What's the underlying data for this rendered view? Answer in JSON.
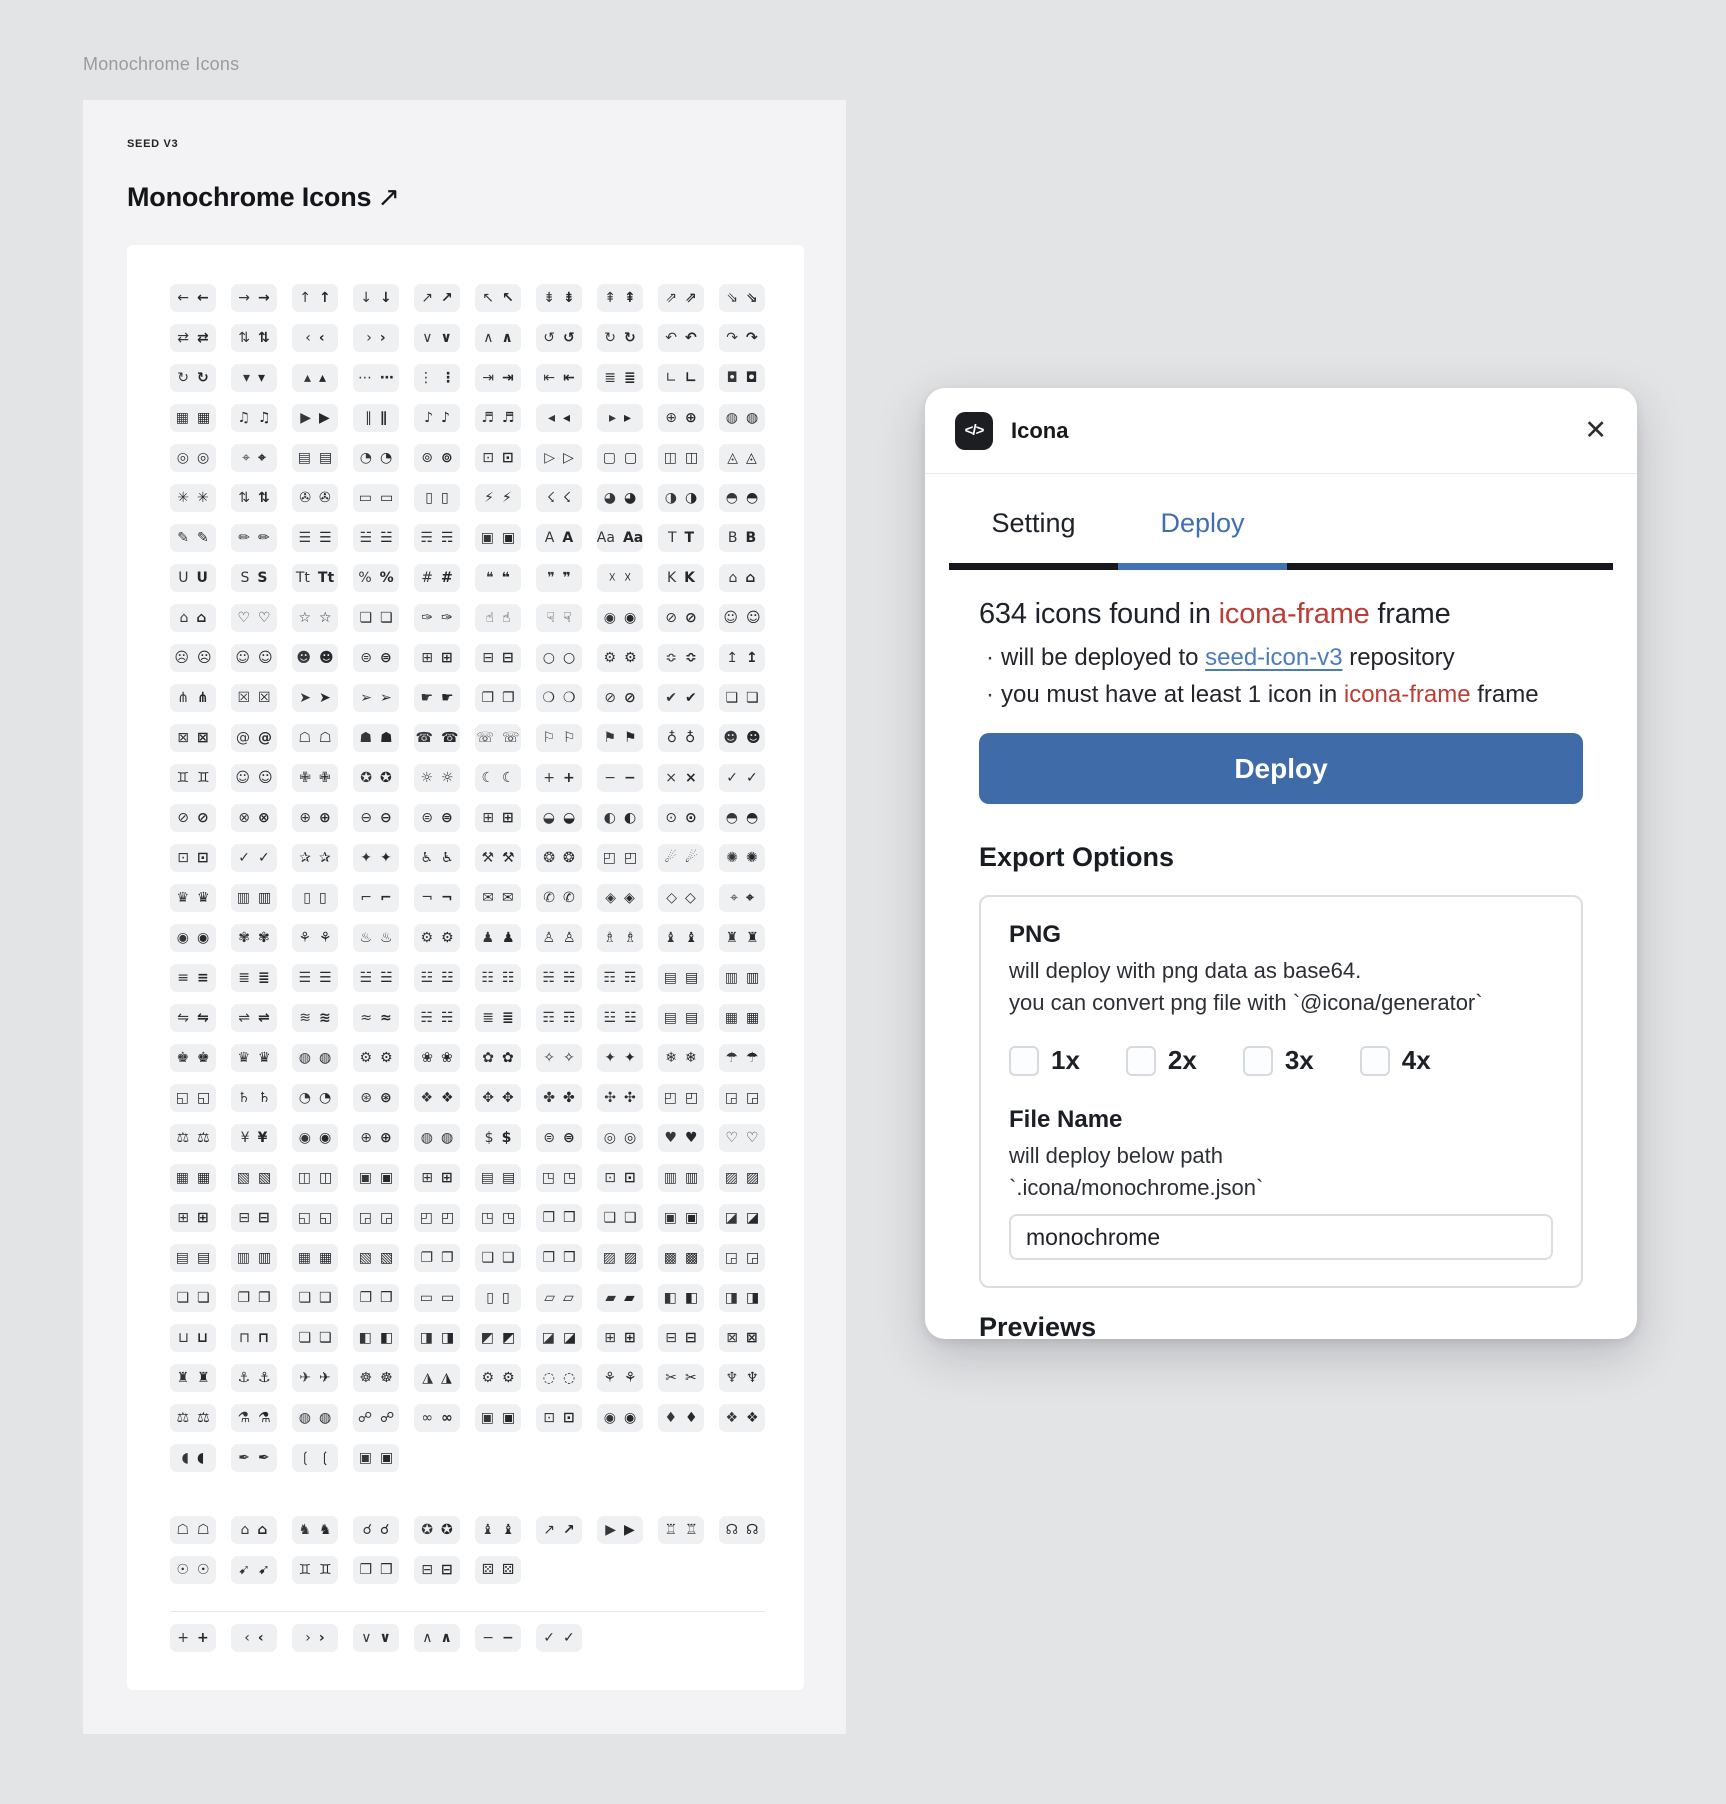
{
  "canvas": {
    "artboard_label": "Monochrome Icons",
    "frame": {
      "eyebrow": "SEED V3",
      "title": "Monochrome Icons",
      "title_arrow": "↗"
    },
    "icon_groups": [
      {
        "name": "main-grid",
        "divider_after": false,
        "rows": [
          [
            "←",
            "→",
            "↑",
            "↓",
            "↗",
            "↖",
            "⇟",
            "⇞",
            "⇗",
            "⇘"
          ],
          [
            "⇄",
            "⇅",
            "‹",
            "›",
            "∨",
            "∧",
            "↺",
            "↻",
            "↶",
            "↷"
          ],
          [
            "↻",
            "▾",
            "▴",
            "⋯",
            "⋮",
            "⇥",
            "⇤",
            "≣",
            "∟",
            "◘"
          ],
          [
            "▦",
            "♫",
            "▶",
            "∥",
            "♪",
            "♬",
            "◂",
            "▸",
            "⊕",
            "◍"
          ],
          [
            "◎",
            "⌖",
            "▤",
            "◔",
            "⊚",
            "⊡",
            "▷",
            "▢",
            "◫",
            "◬"
          ],
          [
            "✳",
            "⇅",
            "✇",
            "▭",
            "▯",
            "⚡",
            "☇",
            "◕",
            "◑",
            "◓"
          ],
          [
            "✎",
            "✏",
            "☰",
            "☱",
            "☴",
            "▣",
            "A",
            "Aa",
            "T",
            "B"
          ],
          [
            "U",
            "S",
            "Tt",
            "%",
            "#",
            "❝",
            "❞",
            "☓",
            "K",
            "⌂"
          ],
          [
            "⌂",
            "♡",
            "☆",
            "❏",
            "✑",
            "☝",
            "☟",
            "◉",
            "⊘",
            "☺"
          ],
          [
            "☹",
            "☺",
            "☻",
            "⊜",
            "⊞",
            "⊟",
            "○",
            "⚙",
            "≎",
            "↥"
          ],
          [
            "⋔",
            "☒",
            "➤",
            "➢",
            "☛",
            "❐",
            "❍",
            "⊘",
            "✔",
            "❏"
          ],
          [
            "⊠",
            "@",
            "☖",
            "☗",
            "☎",
            "☏",
            "⚐",
            "⚑",
            "♁",
            "☻"
          ],
          [
            "♊",
            "☺",
            "✙",
            "✪",
            "☼",
            "☾",
            "+",
            "−",
            "×",
            "✓"
          ],
          [
            "⊘",
            "⊗",
            "⊕",
            "⊖",
            "⊜",
            "⊞",
            "◒",
            "◐",
            "⊙",
            "◓"
          ],
          [
            "⊡",
            "✓",
            "✰",
            "✦",
            "♿",
            "⚒",
            "❂",
            "◰",
            "☄",
            "✺"
          ],
          [
            "♛",
            "▥",
            "▯",
            "⌐",
            "¬",
            "✉",
            "✆",
            "◈",
            "◇",
            "⌖"
          ],
          [
            "◉",
            "✾",
            "⚘",
            "♨",
            "⚙",
            "♟",
            "♙",
            "♗",
            "♝",
            "♜"
          ],
          [
            "≡",
            "≣",
            "☰",
            "☱",
            "☳",
            "☷",
            "☵",
            "☶",
            "▤",
            "▥"
          ],
          [
            "⇋",
            "⇌",
            "≋",
            "≈",
            "☵",
            "≣",
            "☶",
            "☳",
            "▤",
            "▦"
          ],
          [
            "♚",
            "♛",
            "◍",
            "⚙",
            "❀",
            "✿",
            "✧",
            "✦",
            "❄",
            "☂"
          ],
          [
            "◱",
            "♄",
            "◔",
            "⊛",
            "❖",
            "✥",
            "✤",
            "✣",
            "◰",
            "◲"
          ],
          [
            "⚖",
            "¥",
            "◉",
            "⊕",
            "◍",
            "$",
            "⊜",
            "◎",
            "♥",
            "♡"
          ],
          [
            "▦",
            "▧",
            "◫",
            "▣",
            "⊞",
            "▤",
            "◳",
            "⊡",
            "▥",
            "▨"
          ],
          [
            "⊞",
            "⊟",
            "◱",
            "◲",
            "◰",
            "◳",
            "❒",
            "❑",
            "▣",
            "◪"
          ],
          [
            "▤",
            "▥",
            "▦",
            "▧",
            "❐",
            "❑",
            "❒",
            "▨",
            "▩",
            "◲"
          ],
          [
            "❏",
            "❐",
            "❑",
            "❒",
            "▭",
            "▯",
            "▱",
            "▰",
            "◧",
            "◨"
          ],
          [
            "⊔",
            "⊓",
            "❏",
            "◧",
            "◨",
            "◩",
            "◪",
            "⊞",
            "⊟",
            "⊠"
          ],
          [
            "♜",
            "⚓",
            "✈",
            "☸",
            "◮",
            "⚙",
            "◌",
            "⚘",
            "✂",
            "♆"
          ],
          [
            "⚖",
            "⚗",
            "◍",
            "☍",
            "∞",
            "▣",
            "⊡",
            "◉",
            "♦",
            "❖"
          ],
          [
            "◖",
            "✒",
            "❲",
            "▣"
          ]
        ]
      },
      {
        "name": "extra-grid",
        "divider_after": true,
        "rows": [
          [
            "☖",
            "⌂",
            "♞",
            "☌",
            "✪",
            "♝",
            "↗",
            "▶",
            "♖",
            "☊"
          ],
          [
            "☉",
            "➹",
            "♊",
            "❒",
            "⊟",
            "⚄"
          ]
        ]
      },
      {
        "name": "primitive-grid",
        "divider_after": false,
        "rows": [
          [
            "+",
            "‹",
            "›",
            "∨",
            "∧",
            "−",
            "✓"
          ]
        ]
      }
    ]
  },
  "panel": {
    "title": "Icona",
    "logo_glyph": "</>",
    "close_glyph": "✕",
    "tabs": [
      {
        "label": "Setting",
        "active": false
      },
      {
        "label": "Deploy",
        "active": true
      }
    ],
    "summary": {
      "prefix": "634 icons found in ",
      "highlight": "icona-frame",
      "suffix": " frame"
    },
    "bullets": [
      {
        "pre": "will be deployed to ",
        "link": "seed-icon-v3",
        "post": " repository"
      },
      {
        "pre": "you must have at least 1 icon in ",
        "highlight": "icona-frame",
        "post": " frame"
      }
    ],
    "deploy_button": "Deploy",
    "export_options_title": "Export Options",
    "png_section": {
      "title": "PNG",
      "desc1": "will deploy with png data as base64.",
      "desc2": "you can convert png file with `@icona/generator`",
      "scales": [
        "1x",
        "2x",
        "3x",
        "4x"
      ]
    },
    "file_name_section": {
      "title": "File Name",
      "desc1": "will deploy below path",
      "desc2": "`.icona/monochrome.json`",
      "value": "monochrome"
    },
    "previews_title": "Previews",
    "colors": {
      "accent_red": "#bd3c35",
      "link_blue": "#4a7cbd",
      "tab_blue": "#4373b5",
      "button_blue": "#3f6ba9",
      "bar_dark": "#16181d"
    }
  }
}
